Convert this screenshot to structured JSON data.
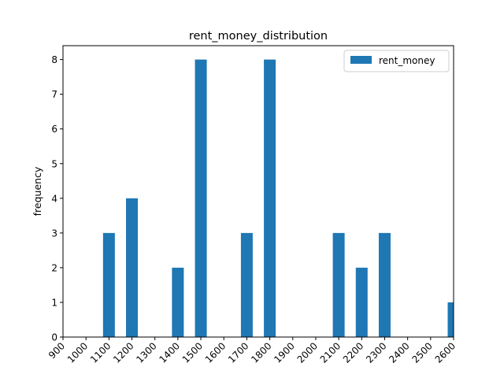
{
  "chart_data": {
    "type": "bar",
    "title": "rent_money_distribution",
    "xlabel": "",
    "ylabel": "frequency",
    "x_ticks": [
      "900",
      "1000",
      "1100",
      "1200",
      "1300",
      "1400",
      "1500",
      "1600",
      "1700",
      "1800",
      "1900",
      "2000",
      "2100",
      "2200",
      "2300",
      "2400",
      "2500",
      "2600"
    ],
    "xlim": [
      900,
      2600
    ],
    "ylim": [
      0,
      8.4
    ],
    "y_ticks": [
      0,
      1,
      2,
      3,
      4,
      5,
      6,
      7,
      8
    ],
    "series": [
      {
        "name": "rent_money",
        "color": "#1f77b4",
        "x": [
          1100,
          1200,
          1400,
          1500,
          1700,
          1800,
          2100,
          2200,
          2300,
          2600
        ],
        "values": [
          3,
          4,
          2,
          8,
          3,
          8,
          3,
          2,
          3,
          1
        ]
      }
    ],
    "legend": "top-right",
    "grid": false
  }
}
